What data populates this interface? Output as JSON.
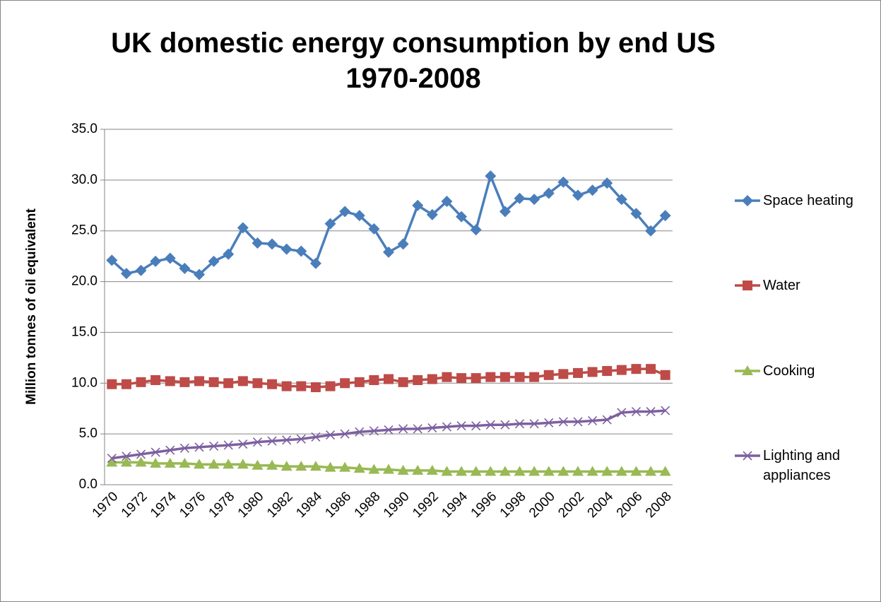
{
  "chart_data": {
    "type": "line",
    "title": "UK domestic energy consumption by end US 1970-2008",
    "y_label": "Million tonnes of oil equivalent",
    "categories": [
      "1970",
      null,
      "1972",
      null,
      "1974",
      null,
      "1976",
      null,
      "1978",
      null,
      "1980",
      null,
      "1982",
      null,
      "1984",
      null,
      "1986",
      null,
      "1988",
      null,
      "1990",
      null,
      "1992",
      null,
      "1994",
      null,
      "1996",
      null,
      "1998",
      null,
      "2000",
      null,
      "2002",
      null,
      "2004",
      null,
      "2006",
      null,
      "2008"
    ],
    "series": [
      {
        "name": "Space heating",
        "color": "#4a7ebb",
        "marker": "diamond",
        "values": [
          22.1,
          20.8,
          21.1,
          22.0,
          22.3,
          21.3,
          20.7,
          22.0,
          22.7,
          25.3,
          23.8,
          23.7,
          23.2,
          23.0,
          21.8,
          25.7,
          26.9,
          26.5,
          25.2,
          22.9,
          23.7,
          27.5,
          26.6,
          27.9,
          26.4,
          25.1,
          30.4,
          26.9,
          28.2,
          28.1,
          28.7,
          29.8,
          28.5,
          29.0,
          29.7,
          28.1,
          26.7,
          25.0,
          26.5
        ]
      },
      {
        "name": "Water",
        "color": "#be4b48",
        "marker": "square",
        "values": [
          9.9,
          9.9,
          10.1,
          10.3,
          10.2,
          10.1,
          10.2,
          10.1,
          10.0,
          10.2,
          10.0,
          9.9,
          9.7,
          9.7,
          9.6,
          9.7,
          10.0,
          10.1,
          10.3,
          10.4,
          10.1,
          10.3,
          10.4,
          10.6,
          10.5,
          10.5,
          10.6,
          10.6,
          10.6,
          10.6,
          10.8,
          10.9,
          11.0,
          11.1,
          11.2,
          11.3,
          11.4,
          11.4,
          10.8
        ]
      },
      {
        "name": "Cooking",
        "color": "#98b954",
        "marker": "triangle",
        "values": [
          2.2,
          2.2,
          2.2,
          2.1,
          2.1,
          2.1,
          2.0,
          2.0,
          2.0,
          2.0,
          1.9,
          1.9,
          1.8,
          1.8,
          1.8,
          1.7,
          1.7,
          1.6,
          1.5,
          1.5,
          1.4,
          1.4,
          1.4,
          1.3,
          1.3,
          1.3,
          1.3,
          1.3,
          1.3,
          1.3,
          1.3,
          1.3,
          1.3,
          1.3,
          1.3,
          1.3,
          1.3,
          1.3,
          1.3
        ]
      },
      {
        "name": "Lighting and appliances",
        "color": "#7d60a0",
        "marker": "x",
        "values": [
          2.6,
          2.8,
          3.0,
          3.2,
          3.4,
          3.6,
          3.7,
          3.8,
          3.9,
          4.0,
          4.2,
          4.3,
          4.4,
          4.5,
          4.7,
          4.9,
          5.0,
          5.2,
          5.3,
          5.4,
          5.5,
          5.5,
          5.6,
          5.7,
          5.8,
          5.8,
          5.9,
          5.9,
          6.0,
          6.0,
          6.1,
          6.2,
          6.2,
          6.3,
          6.4,
          7.1,
          7.2,
          7.2,
          7.3
        ]
      }
    ],
    "ylim": [
      0,
      35
    ],
    "yticks": [
      {
        "value": 0,
        "label": "0.0"
      },
      {
        "value": 5,
        "label": "5.0"
      },
      {
        "value": 10,
        "label": "10.0"
      },
      {
        "value": 15,
        "label": "15.0"
      },
      {
        "value": 20,
        "label": "20.0"
      },
      {
        "value": 25,
        "label": "25.0"
      },
      {
        "value": 30,
        "label": "30.0"
      },
      {
        "value": 35,
        "label": "35.0"
      }
    ],
    "grid": true,
    "legend": "right"
  }
}
